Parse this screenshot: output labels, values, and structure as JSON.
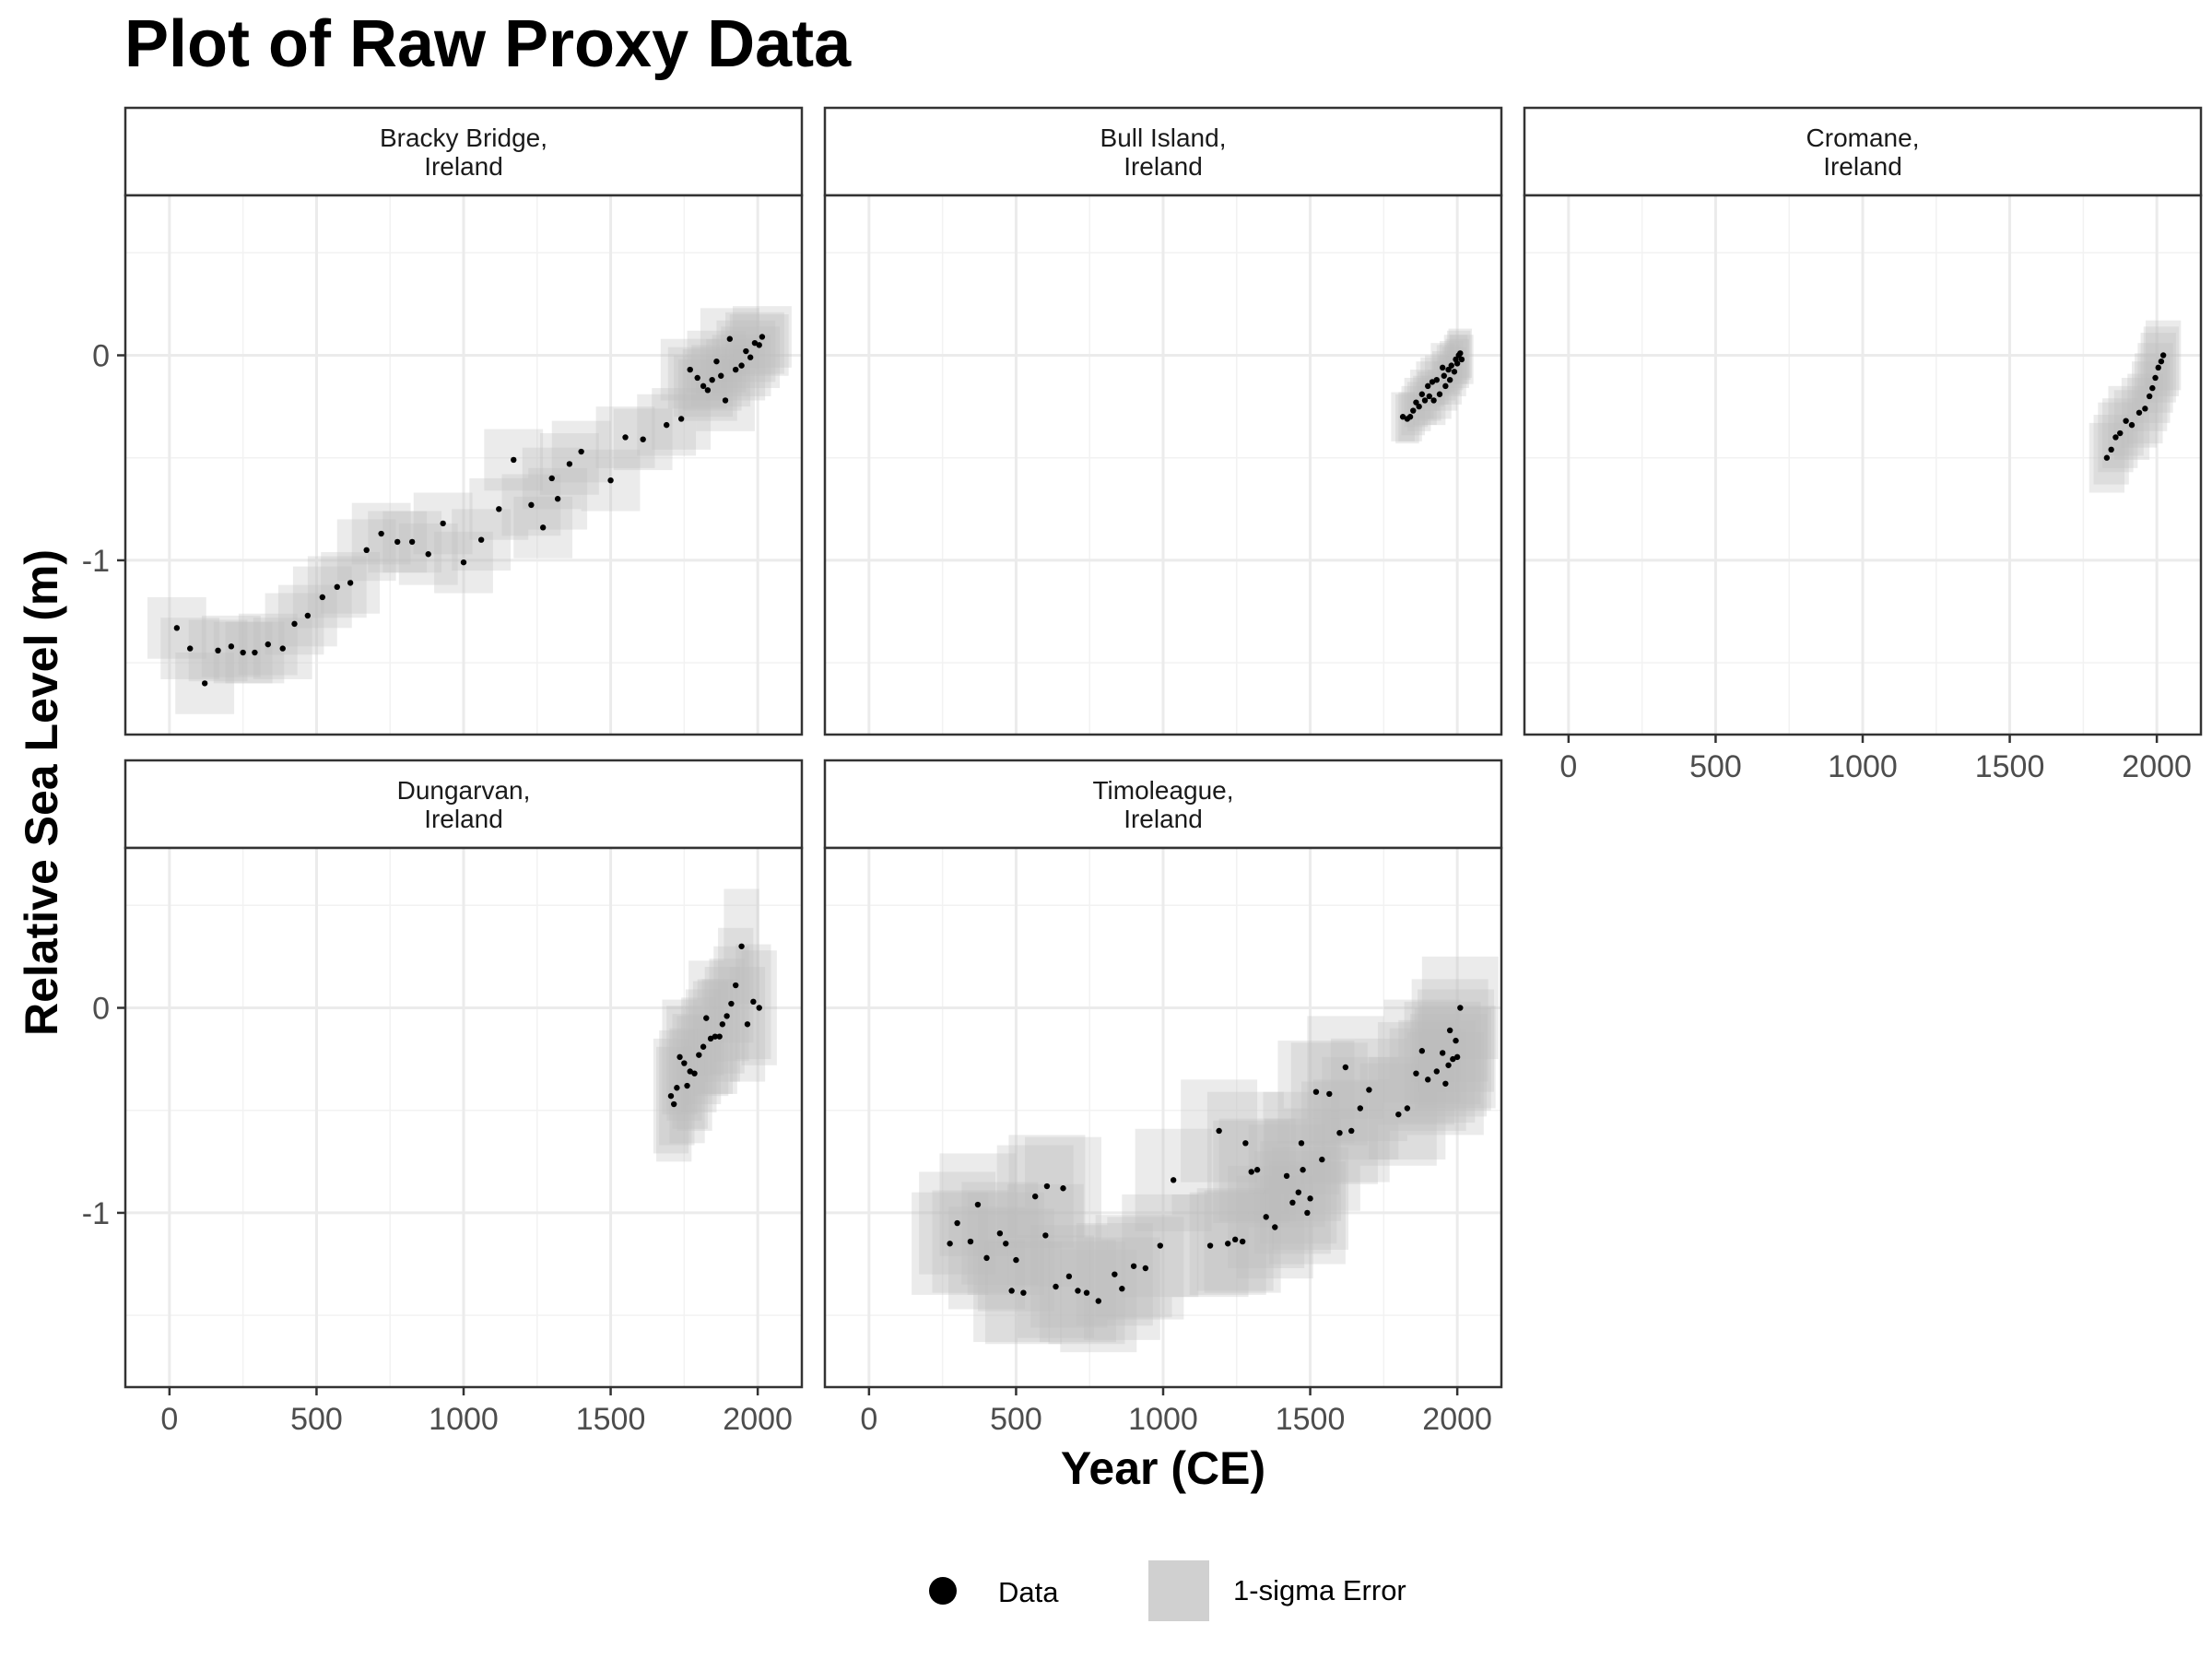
{
  "chart_data": {
    "type": "scatter",
    "title": "Plot of Raw Proxy Data",
    "xlabel": "Year (CE)",
    "ylabel": "Relative Sea Level (m)",
    "xlim": [
      -150,
      2150
    ],
    "ylim": [
      -1.85,
      0.78
    ],
    "x_ticks": [
      0,
      500,
      1000,
      1500,
      2000
    ],
    "y_ticks": [
      -1,
      0
    ],
    "grid": true,
    "legend": {
      "position": "bottom",
      "items": [
        {
          "label": "Data",
          "kind": "point",
          "color": "#000000"
        },
        {
          "label": "1-sigma Error",
          "kind": "box",
          "color": "#bdbdbd"
        }
      ]
    },
    "colors": {
      "error_box": "#bdbdbd",
      "point": "#000000",
      "strip_bg": "#ffffff",
      "grid": "#ebebeb"
    },
    "panels": [
      {
        "site": "Bracky Bridge,\nIreland",
        "x_err": 100,
        "y_err": 0.15,
        "points": [
          [
            25,
            -1.33
          ],
          [
            70,
            -1.43
          ],
          [
            120,
            -1.6
          ],
          [
            165,
            -1.44
          ],
          [
            210,
            -1.42
          ],
          [
            250,
            -1.45
          ],
          [
            290,
            -1.45
          ],
          [
            335,
            -1.41
          ],
          [
            385,
            -1.43
          ],
          [
            425,
            -1.31
          ],
          [
            470,
            -1.27
          ],
          [
            520,
            -1.18
          ],
          [
            570,
            -1.13
          ],
          [
            615,
            -1.11
          ],
          [
            670,
            -0.95
          ],
          [
            720,
            -0.87
          ],
          [
            775,
            -0.91
          ],
          [
            825,
            -0.91
          ],
          [
            880,
            -0.97
          ],
          [
            930,
            -0.82
          ],
          [
            1000,
            -1.01
          ],
          [
            1060,
            -0.9
          ],
          [
            1120,
            -0.75
          ],
          [
            1170,
            -0.51
          ],
          [
            1230,
            -0.73
          ],
          [
            1270,
            -0.84
          ],
          [
            1300,
            -0.6
          ],
          [
            1320,
            -0.7
          ],
          [
            1360,
            -0.53
          ],
          [
            1400,
            -0.47
          ],
          [
            1500,
            -0.61
          ],
          [
            1550,
            -0.4
          ],
          [
            1610,
            -0.41
          ],
          [
            1690,
            -0.34
          ],
          [
            1740,
            -0.31
          ],
          [
            1770,
            -0.07
          ],
          [
            1795,
            -0.11
          ],
          [
            1815,
            -0.15
          ],
          [
            1830,
            -0.17
          ],
          [
            1845,
            -0.12
          ],
          [
            1860,
            -0.03
          ],
          [
            1875,
            -0.1
          ],
          [
            1890,
            -0.22
          ],
          [
            1905,
            0.08
          ],
          [
            1925,
            -0.07
          ],
          [
            1945,
            -0.05
          ],
          [
            1960,
            0.02
          ],
          [
            1975,
            -0.01
          ],
          [
            1990,
            0.06
          ],
          [
            2005,
            0.05
          ],
          [
            2015,
            0.09
          ]
        ]
      },
      {
        "site": "Bull Island,\nIreland",
        "x_err": 40,
        "y_err": 0.12,
        "points": [
          [
            1815,
            -0.3
          ],
          [
            1830,
            -0.31
          ],
          [
            1840,
            -0.3
          ],
          [
            1850,
            -0.27
          ],
          [
            1860,
            -0.23
          ],
          [
            1870,
            -0.25
          ],
          [
            1880,
            -0.19
          ],
          [
            1890,
            -0.22
          ],
          [
            1900,
            -0.15
          ],
          [
            1905,
            -0.2
          ],
          [
            1915,
            -0.13
          ],
          [
            1920,
            -0.22
          ],
          [
            1930,
            -0.12
          ],
          [
            1940,
            -0.19
          ],
          [
            1950,
            -0.06
          ],
          [
            1955,
            -0.1
          ],
          [
            1960,
            -0.15
          ],
          [
            1970,
            -0.07
          ],
          [
            1975,
            -0.12
          ],
          [
            1980,
            -0.05
          ],
          [
            1990,
            -0.08
          ],
          [
            1995,
            -0.02
          ],
          [
            2000,
            -0.04
          ],
          [
            2005,
            0.0
          ],
          [
            2010,
            0.01
          ],
          [
            2015,
            -0.02
          ]
        ]
      },
      {
        "site": "Cromane,\nIreland",
        "x_err": 60,
        "y_err": 0.17,
        "points": [
          [
            1830,
            -0.5
          ],
          [
            1845,
            -0.46
          ],
          [
            1860,
            -0.4
          ],
          [
            1875,
            -0.38
          ],
          [
            1895,
            -0.32
          ],
          [
            1915,
            -0.34
          ],
          [
            1940,
            -0.28
          ],
          [
            1960,
            -0.26
          ],
          [
            1975,
            -0.2
          ],
          [
            1985,
            -0.16
          ],
          [
            1995,
            -0.11
          ],
          [
            2005,
            -0.06
          ],
          [
            2015,
            -0.03
          ],
          [
            2022,
            0.0
          ]
        ]
      },
      {
        "site": "Dungarvan,\nIreland",
        "x_err": 60,
        "y_err": 0.28,
        "points": [
          [
            1705,
            -0.43
          ],
          [
            1715,
            -0.47
          ],
          [
            1725,
            -0.39
          ],
          [
            1735,
            -0.24
          ],
          [
            1750,
            -0.27
          ],
          [
            1760,
            -0.38
          ],
          [
            1770,
            -0.31
          ],
          [
            1785,
            -0.32
          ],
          [
            1800,
            -0.23
          ],
          [
            1815,
            -0.19
          ],
          [
            1825,
            -0.05
          ],
          [
            1840,
            -0.15
          ],
          [
            1855,
            -0.14
          ],
          [
            1870,
            -0.14
          ],
          [
            1880,
            -0.08
          ],
          [
            1895,
            -0.04
          ],
          [
            1910,
            0.02
          ],
          [
            1925,
            0.11
          ],
          [
            1945,
            0.3
          ],
          [
            1965,
            -0.08
          ],
          [
            1985,
            0.03
          ],
          [
            2005,
            0.0
          ]
        ]
      },
      {
        "site": "Timoleague,\nIreland",
        "x_err": 130,
        "y_err": 0.25,
        "points": [
          [
            275,
            -1.15
          ],
          [
            300,
            -1.05
          ],
          [
            345,
            -1.14
          ],
          [
            370,
            -0.96
          ],
          [
            400,
            -1.22
          ],
          [
            445,
            -1.1
          ],
          [
            465,
            -1.15
          ],
          [
            485,
            -1.38
          ],
          [
            500,
            -1.23
          ],
          [
            525,
            -1.39
          ],
          [
            565,
            -0.92
          ],
          [
            600,
            -1.11
          ],
          [
            605,
            -0.87
          ],
          [
            635,
            -1.36
          ],
          [
            660,
            -0.88
          ],
          [
            680,
            -1.31
          ],
          [
            710,
            -1.38
          ],
          [
            740,
            -1.39
          ],
          [
            780,
            -1.43
          ],
          [
            835,
            -1.3
          ],
          [
            860,
            -1.37
          ],
          [
            900,
            -1.26
          ],
          [
            940,
            -1.27
          ],
          [
            990,
            -1.16
          ],
          [
            1035,
            -0.84
          ],
          [
            1160,
            -1.16
          ],
          [
            1190,
            -0.6
          ],
          [
            1220,
            -1.15
          ],
          [
            1245,
            -1.13
          ],
          [
            1270,
            -1.14
          ],
          [
            1280,
            -0.66
          ],
          [
            1300,
            -0.8
          ],
          [
            1320,
            -0.79
          ],
          [
            1350,
            -1.02
          ],
          [
            1380,
            -1.07
          ],
          [
            1420,
            -0.82
          ],
          [
            1440,
            -0.95
          ],
          [
            1460,
            -0.9
          ],
          [
            1470,
            -0.66
          ],
          [
            1475,
            -0.79
          ],
          [
            1490,
            -1.0
          ],
          [
            1500,
            -0.93
          ],
          [
            1520,
            -0.41
          ],
          [
            1540,
            -0.74
          ],
          [
            1565,
            -0.42
          ],
          [
            1600,
            -0.61
          ],
          [
            1620,
            -0.29
          ],
          [
            1640,
            -0.6
          ],
          [
            1670,
            -0.49
          ],
          [
            1700,
            -0.4
          ],
          [
            1800,
            -0.52
          ],
          [
            1830,
            -0.49
          ],
          [
            1860,
            -0.32
          ],
          [
            1880,
            -0.21
          ],
          [
            1900,
            -0.35
          ],
          [
            1930,
            -0.31
          ],
          [
            1950,
            -0.22
          ],
          [
            1960,
            -0.37
          ],
          [
            1970,
            -0.28
          ],
          [
            1975,
            -0.11
          ],
          [
            1985,
            -0.25
          ],
          [
            1995,
            -0.16
          ],
          [
            2000,
            -0.24
          ],
          [
            2010,
            0.0
          ]
        ]
      }
    ]
  }
}
